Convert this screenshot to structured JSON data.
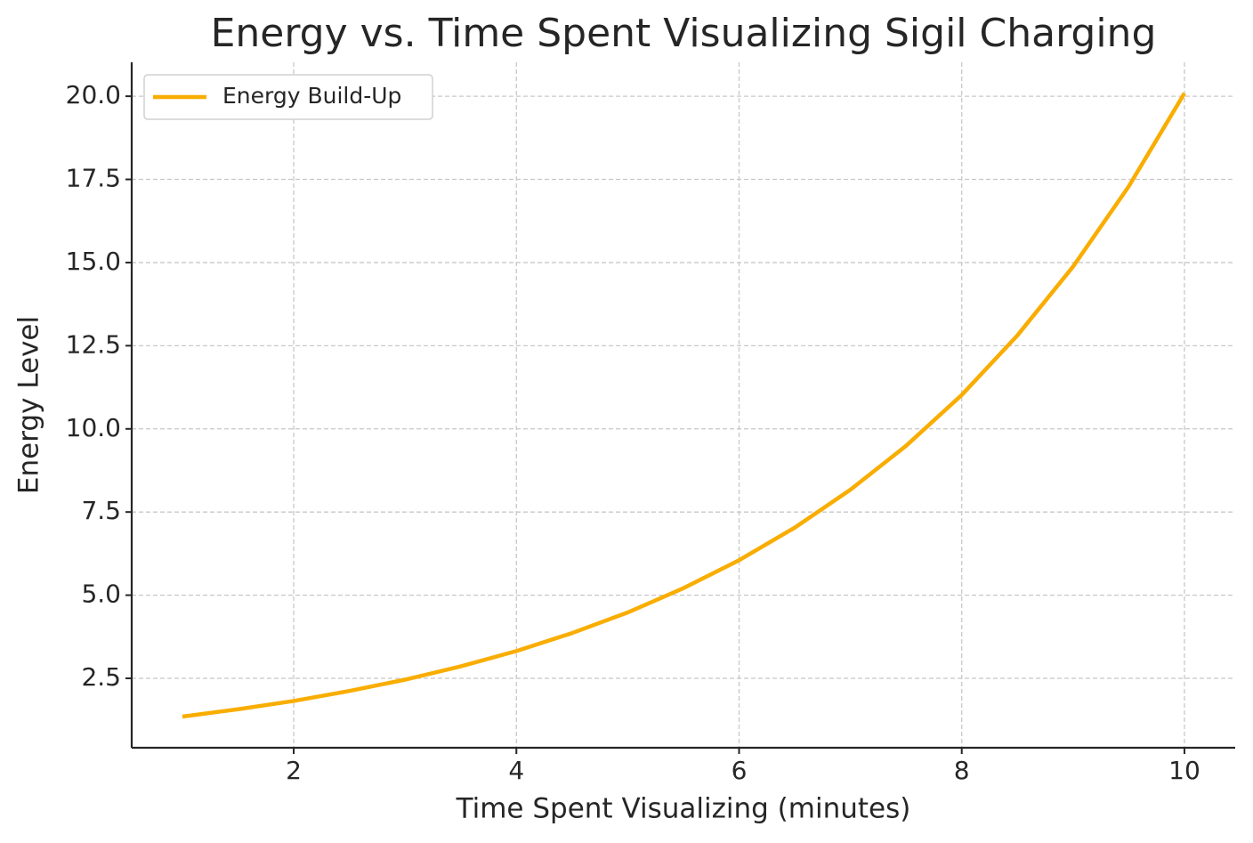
{
  "chart_data": {
    "type": "line",
    "title": "Energy vs. Time Spent Visualizing Sigil Charging",
    "x_label": "Time Spent Visualizing (minutes)",
    "y_label": "Energy Level",
    "x": [
      1,
      1.5,
      2,
      2.5,
      3,
      3.5,
      4,
      4.5,
      5,
      5.5,
      6,
      6.5,
      7,
      7.5,
      8,
      8.5,
      9,
      9.5,
      10
    ],
    "series": [
      {
        "name": "Energy Build-Up",
        "color": "#f9ad00",
        "values": [
          1.35,
          1.57,
          1.82,
          2.12,
          2.46,
          2.86,
          3.32,
          3.86,
          4.48,
          5.21,
          6.05,
          7.03,
          8.17,
          9.49,
          11.02,
          12.81,
          14.88,
          17.29,
          20.09
        ]
      }
    ],
    "xlim": [
      0.545,
      10.456
    ],
    "ylim": [
      0.413,
      21.02
    ],
    "xticks": [
      2,
      4,
      6,
      8,
      10
    ],
    "yticks": [
      2.5,
      {
        "value": 5,
        "label": "5.0"
      },
      7.5,
      {
        "value": 10,
        "label": "10.0"
      },
      12.5,
      {
        "value": 15,
        "label": "15.0"
      },
      17.5,
      {
        "value": 20,
        "label": "20.0"
      }
    ],
    "grid": true,
    "legend": "upper left"
  }
}
